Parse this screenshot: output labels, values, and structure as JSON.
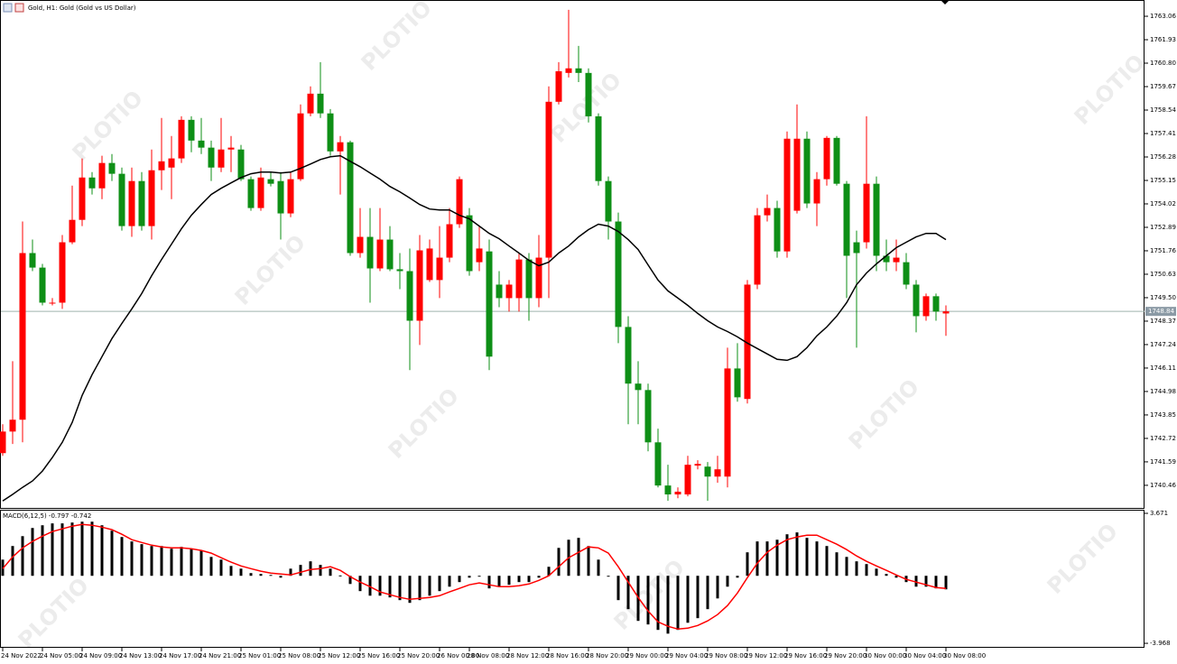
{
  "chart_data": {
    "type": "candlestick",
    "title": "Gold, H1: Gold (Gold vs US Dollar)",
    "watermark": "PLOTIO",
    "up_color": "#ff0000",
    "down_color": "#0e8f16",
    "categories": [
      "24 Nov 2022",
      null,
      null,
      null,
      "24 Nov 05:00",
      null,
      null,
      null,
      "24 Nov 09:00",
      null,
      null,
      null,
      "24 Nov 13:00",
      null,
      null,
      null,
      "24 Nov 17:00",
      null,
      null,
      null,
      "24 Nov 21:00",
      null,
      null,
      null,
      "25 Nov 01:00",
      null,
      null,
      null,
      "25 Nov 08:00",
      null,
      null,
      null,
      "25 Nov 12:00",
      null,
      null,
      null,
      "25 Nov 16:00",
      null,
      null,
      null,
      "25 Nov 20:00",
      null,
      null,
      null,
      "26 Nov 00:00",
      null,
      null,
      "28 Nov 08:00",
      null,
      null,
      null,
      "28 Nov 12:00",
      null,
      null,
      null,
      "28 Nov 16:00",
      null,
      null,
      null,
      "28 Nov 20:00",
      null,
      null,
      null,
      "29 Nov 00:00",
      null,
      null,
      null,
      "29 Nov 04:00",
      null,
      null,
      null,
      "29 Nov 08:00",
      null,
      null,
      null,
      "29 Nov 12:00",
      null,
      null,
      null,
      "29 Nov 16:00",
      null,
      null,
      null,
      "29 Nov 20:00",
      null,
      null,
      null,
      "30 Nov 00:00",
      null,
      null,
      null,
      "30 Nov 04:00",
      null,
      null,
      null,
      "30 Nov 08:00"
    ],
    "open": [
      1742.01,
      1743.05,
      1743.62,
      1751.65,
      1750.95,
      1749.26,
      1749.26,
      1752.17,
      1753.25,
      1755.29,
      1754.77,
      1755.99,
      1755.47,
      1752.95,
      1755.12,
      1752.95,
      1755.64,
      1755.77,
      1756.21,
      1758.07,
      1757.07,
      1756.73,
      1755.77,
      1756.64,
      1756.64,
      1755.21,
      1753.82,
      1755.21,
      1755.12,
      1753.56,
      1755.21,
      1758.38,
      1759.33,
      1758.38,
      1756.55,
      1756.99,
      1751.65,
      1752.43,
      1750.91,
      1752.3,
      1750.87,
      1750.78,
      1748.39,
      1750.35,
      1750.35,
      1751.43,
      1753.04,
      1753.47,
      1751.21,
      1751.73,
      1750.13,
      1749.48,
      1749.48,
      1751.34,
      1749.48,
      1751.43,
      1758.94,
      1760.33,
      1760.55,
      1760.33,
      1758.24,
      1755.12,
      1753.17,
      1748.09,
      1745.36,
      1745.05,
      1742.53,
      1740.45,
      1740.02,
      1740.02,
      1741.41,
      1741.36,
      1740.88,
      1740.88,
      1746.09,
      1744.62,
      1750.13,
      1753.47,
      1753.82,
      1751.73,
      1753.69,
      1757.16,
      1754.04,
      1755.21,
      1757.2,
      1754.99,
      1752.17,
      1752.17,
      1754.99,
      1751.52,
      1751.21,
      1751.21,
      1750.13,
      1748.61,
      1749.57,
      1748.74
    ],
    "high": [
      1743.4,
      1746.44,
      1753.17,
      1752.3,
      1751.13,
      1749.48,
      1752.52,
      1754.9,
      1756.21,
      1755.55,
      1756.34,
      1756.42,
      1755.77,
      1755.77,
      1755.55,
      1756.64,
      1758.16,
      1757.29,
      1758.24,
      1758.24,
      1758.16,
      1757.07,
      1758.16,
      1757.29,
      1756.86,
      1755.34,
      1755.77,
      1755.55,
      1755.55,
      1755.55,
      1758.81,
      1759.68,
      1760.85,
      1758.59,
      1757.29,
      1757.07,
      1753.82,
      1753.82,
      1753.82,
      1752.95,
      1751.65,
      1751.87,
      1752.52,
      1752.3,
      1752.95,
      1753.82,
      1755.34,
      1753.82,
      1752.95,
      1752.3,
      1750.78,
      1750.35,
      1751.65,
      1751.65,
      1752.52,
      1759.68,
      1760.85,
      1763.37,
      1761.63,
      1760.55,
      1758.38,
      1755.34,
      1753.6,
      1748.61,
      1746.44,
      1745.36,
      1743.19,
      1741.45,
      1740.36,
      1741.88,
      1741.67,
      1741.58,
      1741.88,
      1747.09,
      1747.31,
      1750.35,
      1753.82,
      1754.47,
      1754.17,
      1757.51,
      1758.81,
      1757.51,
      1755.55,
      1757.29,
      1757.29,
      1755.12,
      1752.73,
      1758.24,
      1755.34,
      1752.3,
      1752.3,
      1751.65,
      1750.35,
      1749.7,
      1749.7,
      1749.13
    ],
    "low": [
      1741.88,
      1742.45,
      1742.53,
      1750.78,
      1749.13,
      1749.13,
      1748.96,
      1752.08,
      1752.95,
      1754.47,
      1754.25,
      1755.12,
      1752.73,
      1752.43,
      1752.73,
      1752.3,
      1754.69,
      1754.25,
      1755.99,
      1756.51,
      1756.42,
      1755.12,
      1755.55,
      1755.55,
      1755.12,
      1753.69,
      1753.69,
      1754.86,
      1752.3,
      1753.38,
      1755.12,
      1758.24,
      1758.16,
      1756.34,
      1754.47,
      1751.52,
      1751.43,
      1749.26,
      1750.78,
      1750.78,
      1749.91,
      1746.01,
      1747.22,
      1750.26,
      1749.48,
      1751.21,
      1752.86,
      1750.56,
      1750.78,
      1746.01,
      1749.04,
      1748.83,
      1748.83,
      1748.39,
      1749.04,
      1749.48,
      1758.81,
      1760.11,
      1759.89,
      1757.94,
      1754.9,
      1752.3,
      1747.31,
      1743.4,
      1743.4,
      1742.1,
      1740.36,
      1739.71,
      1739.84,
      1739.93,
      1741.23,
      1739.71,
      1740.58,
      1740.36,
      1744.49,
      1744.4,
      1749.91,
      1753.17,
      1751.43,
      1751.43,
      1753.56,
      1753.82,
      1752.95,
      1754.9,
      1754.9,
      1749.48,
      1747.09,
      1751.87,
      1750.78,
      1750.78,
      1750.78,
      1749.91,
      1747.83,
      1748.39,
      1748.39,
      1747.66
    ],
    "close": [
      1743.05,
      1743.62,
      1751.65,
      1750.95,
      1749.26,
      1749.26,
      1752.17,
      1753.25,
      1755.29,
      1754.77,
      1755.99,
      1755.47,
      1752.95,
      1755.12,
      1752.95,
      1755.64,
      1756.07,
      1756.21,
      1758.07,
      1757.07,
      1756.73,
      1755.77,
      1756.64,
      1756.73,
      1755.21,
      1753.82,
      1755.29,
      1754.99,
      1753.56,
      1755.21,
      1758.38,
      1759.33,
      1758.38,
      1756.55,
      1756.99,
      1751.65,
      1752.43,
      1750.91,
      1752.3,
      1750.87,
      1750.78,
      1748.39,
      1751.78,
      1751.87,
      1751.43,
      1753.04,
      1755.21,
      1750.78,
      1751.87,
      1746.66,
      1749.48,
      1750.13,
      1751.34,
      1749.48,
      1751.43,
      1758.94,
      1760.41,
      1760.55,
      1760.33,
      1758.24,
      1755.12,
      1753.17,
      1748.09,
      1745.36,
      1745.05,
      1742.53,
      1740.45,
      1740.02,
      1740.15,
      1741.45,
      1741.49,
      1740.88,
      1741.23,
      1746.09,
      1744.7,
      1750.13,
      1753.47,
      1753.82,
      1751.73,
      1757.16,
      1757.16,
      1754.04,
      1755.21,
      1757.2,
      1754.99,
      1751.52,
      1751.65,
      1754.99,
      1751.52,
      1751.21,
      1751.43,
      1750.13,
      1748.61,
      1749.57,
      1748.83,
      1748.84
    ],
    "ma": {
      "color": "#000000",
      "values": [
        1739.71,
        1740.02,
        1740.36,
        1740.67,
        1741.15,
        1741.8,
        1742.53,
        1743.49,
        1744.79,
        1745.79,
        1746.66,
        1747.53,
        1748.26,
        1748.96,
        1749.7,
        1750.56,
        1751.34,
        1752.08,
        1752.82,
        1753.47,
        1753.99,
        1754.47,
        1754.77,
        1755.03,
        1755.29,
        1755.47,
        1755.55,
        1755.55,
        1755.51,
        1755.55,
        1755.73,
        1755.94,
        1756.16,
        1756.29,
        1756.34,
        1756.07,
        1755.81,
        1755.51,
        1755.21,
        1754.86,
        1754.6,
        1754.3,
        1753.99,
        1753.77,
        1753.73,
        1753.73,
        1753.47,
        1753.3,
        1752.95,
        1752.6,
        1752.34,
        1751.99,
        1751.65,
        1751.3,
        1751.04,
        1751.21,
        1751.65,
        1751.99,
        1752.43,
        1752.78,
        1753.04,
        1752.95,
        1752.69,
        1752.3,
        1751.82,
        1751.08,
        1750.35,
        1749.83,
        1749.48,
        1749.13,
        1748.74,
        1748.39,
        1748.09,
        1747.87,
        1747.61,
        1747.31,
        1747.05,
        1746.79,
        1746.53,
        1746.48,
        1746.66,
        1747.09,
        1747.66,
        1748.09,
        1748.61,
        1749.26,
        1750.13,
        1750.69,
        1751.13,
        1751.52,
        1751.91,
        1752.17,
        1752.43,
        1752.6,
        1752.6,
        1752.3
      ]
    },
    "last_price": 1748.84,
    "ylim": [
      1739.37,
      1763.8
    ],
    "yticks": [
      1763.06,
      1761.93,
      {
        "value": 1760.8,
        "label": "1760.80"
      },
      1759.67,
      1758.54,
      1757.41,
      1756.28,
      1755.15,
      1754.02,
      1752.89,
      1751.76,
      1750.63,
      {
        "value": 1749.5,
        "label": "1749.50"
      },
      1748.37,
      1747.24,
      1746.11,
      1744.98,
      1743.85,
      1742.72,
      1741.59,
      1740.46
    ],
    "macd": {
      "label": "MACD(6,12,5) -0.797 -0.742",
      "ylim": [
        -4.23,
        3.83
      ],
      "yticks": [
        3.671,
        -3.968
      ],
      "histogram": {
        "color": "#000000",
        "values": [
          0.95,
          1.75,
          2.33,
          2.81,
          2.97,
          3.08,
          3.08,
          3.13,
          3.18,
          3.18,
          2.97,
          2.65,
          2.28,
          2.02,
          1.86,
          1.75,
          1.75,
          1.59,
          1.7,
          1.59,
          1.49,
          1.11,
          0.95,
          0.58,
          0.42,
          0.16,
          0.11,
          0.05,
          -0.11,
          0.42,
          0.64,
          0.85,
          0.64,
          0.42,
          0.02,
          -0.48,
          -0.9,
          -1.17,
          -1.17,
          -1.27,
          -1.43,
          -1.59,
          -1.43,
          -1.17,
          -0.9,
          -0.64,
          -0.37,
          -0.11,
          -0.02,
          -0.74,
          -0.64,
          -0.53,
          -0.37,
          -0.37,
          -0.11,
          0.53,
          1.64,
          2.12,
          2.23,
          1.75,
          0.95,
          -0.02,
          -1.43,
          -1.96,
          -2.65,
          -2.86,
          -3.18,
          -3.4,
          -3.18,
          -2.76,
          -2.49,
          -1.96,
          -1.33,
          -0.64,
          -0.11,
          1.38,
          2.02,
          2.02,
          2.12,
          2.44,
          2.55,
          2.23,
          2.02,
          1.75,
          1.38,
          1.11,
          0.85,
          0.69,
          0.42,
          0.11,
          -0.11,
          -0.37,
          -0.64,
          -0.64,
          -0.74,
          -0.797
        ]
      },
      "signal": {
        "color": "#ff0000",
        "values": [
          0.42,
          1.11,
          1.64,
          2.02,
          2.33,
          2.6,
          2.76,
          2.92,
          3.02,
          2.97,
          2.86,
          2.71,
          2.44,
          2.12,
          1.96,
          1.8,
          1.7,
          1.64,
          1.64,
          1.59,
          1.49,
          1.33,
          1.06,
          0.8,
          0.58,
          0.42,
          0.27,
          0.16,
          0.11,
          0.05,
          0.21,
          0.37,
          0.42,
          0.53,
          0.32,
          -0.05,
          -0.37,
          -0.64,
          -0.95,
          -1.11,
          -1.27,
          -1.38,
          -1.33,
          -1.27,
          -1.17,
          -0.95,
          -0.74,
          -0.53,
          -0.42,
          -0.53,
          -0.64,
          -0.64,
          -0.58,
          -0.48,
          -0.27,
          0.0,
          0.53,
          1.06,
          1.38,
          1.7,
          1.64,
          1.33,
          0.53,
          -0.37,
          -1.27,
          -2.07,
          -2.71,
          -2.97,
          -3.13,
          -3.08,
          -2.92,
          -2.65,
          -2.28,
          -1.75,
          -1.01,
          -0.11,
          0.74,
          1.38,
          1.8,
          2.12,
          2.28,
          2.39,
          2.39,
          2.12,
          1.86,
          1.54,
          1.17,
          0.85,
          0.58,
          0.32,
          0.05,
          -0.21,
          -0.37,
          -0.53,
          -0.69,
          -0.742
        ]
      }
    }
  }
}
